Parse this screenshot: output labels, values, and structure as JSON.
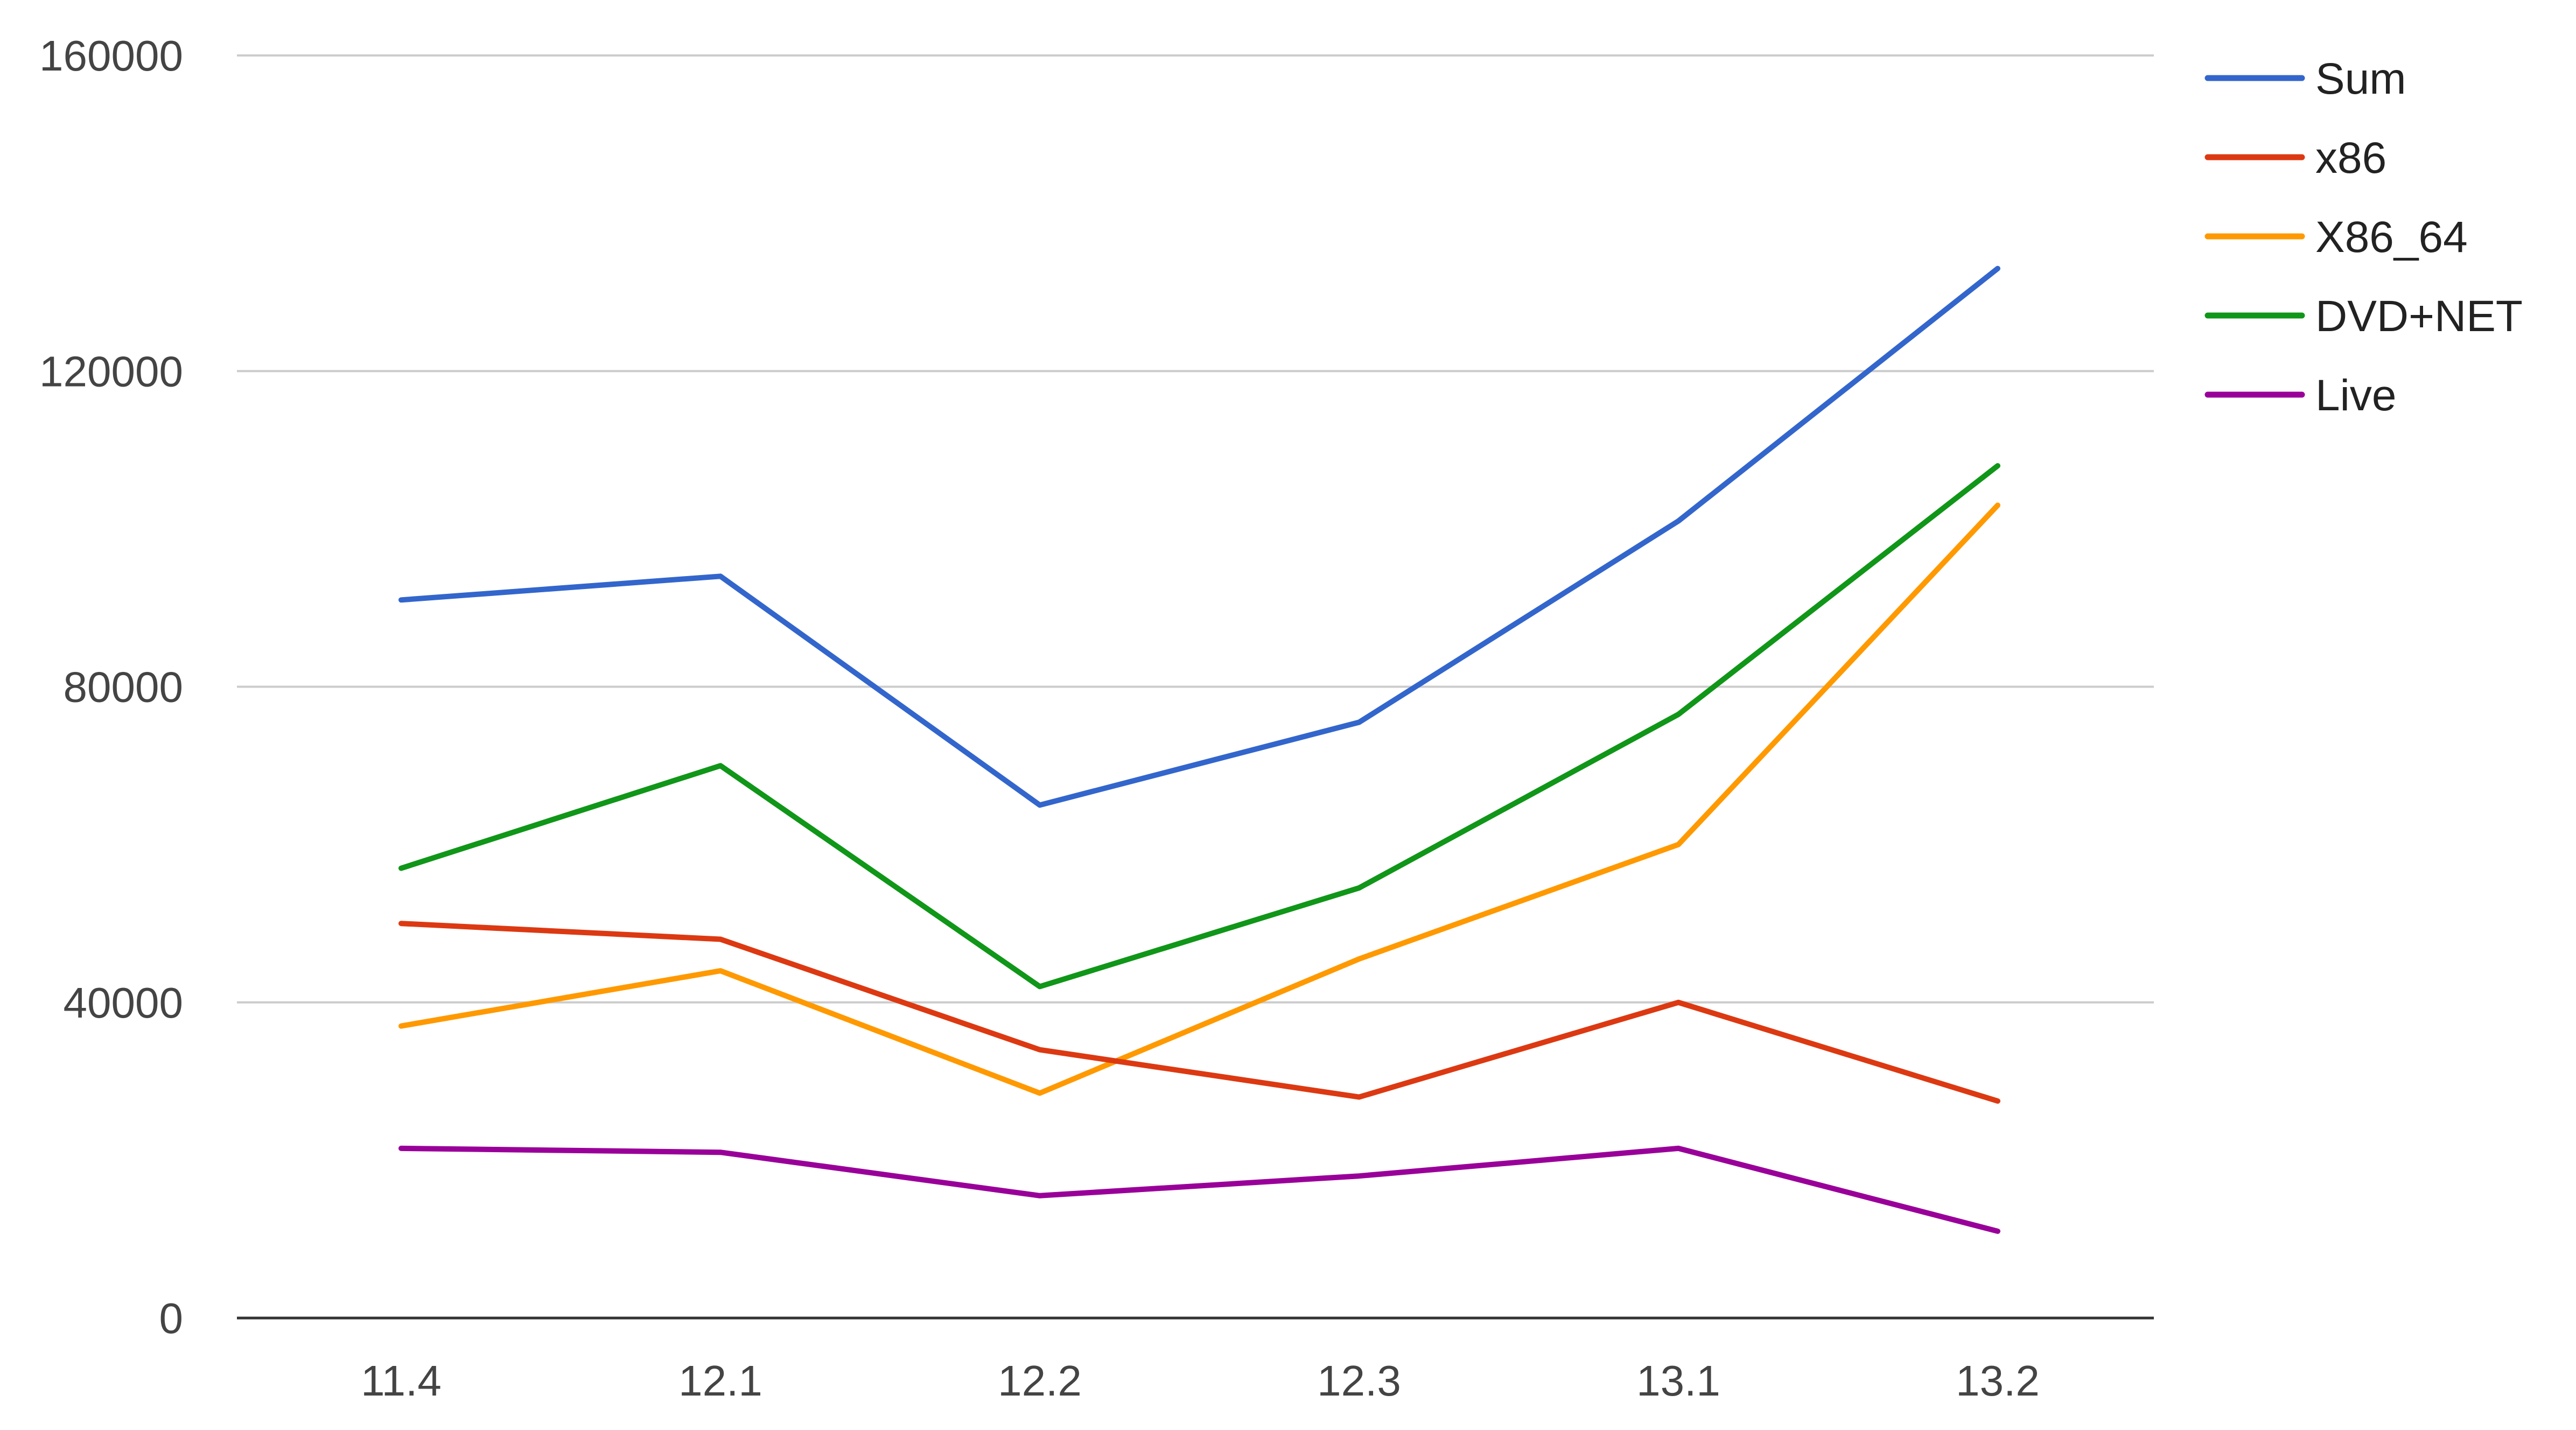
{
  "chart_data": {
    "type": "line",
    "title": "",
    "xlabel": "",
    "ylabel": "",
    "categories": [
      "11.4",
      "12.1",
      "12.2",
      "12.3",
      "13.1",
      "13.2"
    ],
    "ylim": [
      0,
      160000
    ],
    "yticks": [
      0,
      40000,
      80000,
      120000,
      160000
    ],
    "grid": true,
    "legend_position": "right",
    "series": [
      {
        "name": "Sum",
        "color": "#3366cc",
        "values": [
          91000,
          94000,
          65000,
          75500,
          101000,
          133000
        ]
      },
      {
        "name": "x86",
        "color": "#dc3912",
        "values": [
          50000,
          48000,
          34000,
          28000,
          40000,
          27500
        ]
      },
      {
        "name": "X86_64",
        "color": "#ff9900",
        "values": [
          37000,
          44000,
          28500,
          45500,
          60000,
          103000
        ]
      },
      {
        "name": "DVD+NET",
        "color": "#109618",
        "values": [
          57000,
          70000,
          42000,
          54500,
          76500,
          108000
        ]
      },
      {
        "name": "Live",
        "color": "#990099",
        "values": [
          21500,
          21000,
          15500,
          18000,
          21500,
          11000
        ]
      }
    ]
  }
}
